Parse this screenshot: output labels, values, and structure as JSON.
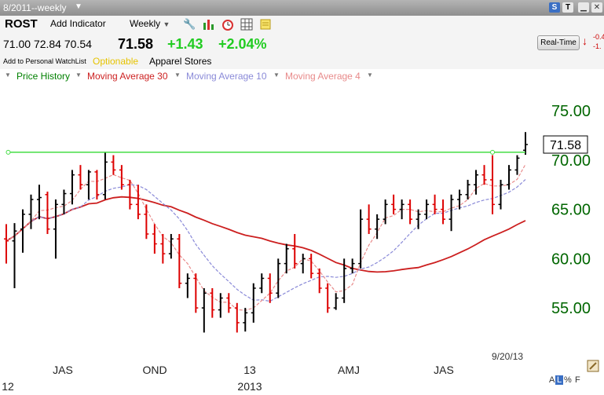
{
  "titlebar": {
    "date_range": "8/2011--weekly",
    "caret_icon": "chevron-down-icon",
    "s_badge": "S",
    "t_badge": "T"
  },
  "toolbar": {
    "symbol": "ROST",
    "add_indicator": "Add Indicator",
    "period": "Weekly",
    "icons": [
      "wrench-icon",
      "bar-chart-icon",
      "alarm-clock-icon",
      "grid-icon",
      "note-icon"
    ]
  },
  "quote": {
    "open": "71.00",
    "high": "72.84",
    "low": "70.54",
    "last": "71.58",
    "change": "+1.43",
    "change_pct": "+2.04%",
    "watchlist": "Add to Personal WatchList",
    "optionable": "Optionable",
    "industry": "Apparel Stores"
  },
  "realtime": {
    "button": "Real-Time",
    "v1": "-0.4",
    "v2": "-1."
  },
  "legend": {
    "items": [
      {
        "label": "Price History",
        "color": "#008000"
      },
      {
        "label": "Moving Average 30",
        "color": "#cc1f1f"
      },
      {
        "label": "Moving Average 10",
        "color": "#8a8ad8"
      },
      {
        "label": "Moving Average 4",
        "color": "#e88a8a"
      }
    ]
  },
  "footer": {
    "date": "9/20/13",
    "a": "A",
    "l": "L",
    "pct": "%",
    "f": "F"
  },
  "colors": {
    "bar_up": "#000000",
    "bar_down": "#dd0000",
    "axis_text": "#006600",
    "trendline": "#44dd44"
  },
  "chart_data": {
    "type": "bar",
    "subtype": "ohlc",
    "ylim": [
      51.5,
      77.8
    ],
    "y_ticks": [
      "75.00",
      "70.00",
      "65.00",
      "60.00",
      "55.00"
    ],
    "y_tick_values": [
      75,
      70,
      65,
      60,
      55
    ],
    "x_labels_top": [
      "JAS",
      "OND",
      "13",
      "AMJ",
      "JAS"
    ],
    "x_labels_bottom": [
      "12",
      "2013"
    ],
    "last_price_label": "71.58",
    "last_price": 71.58,
    "trendline": {
      "start_week": 1,
      "end_week": 59,
      "value": 70.8
    },
    "bars": [
      {
        "o": 62.0,
        "h": 63.5,
        "l": 59.5,
        "c": 61.8
      },
      {
        "o": 61.8,
        "h": 63.6,
        "l": 57.0,
        "c": 62.8
      },
      {
        "o": 63.0,
        "h": 65.0,
        "l": 60.6,
        "c": 64.5
      },
      {
        "o": 64.5,
        "h": 66.5,
        "l": 63.0,
        "c": 66.0
      },
      {
        "o": 66.0,
        "h": 67.5,
        "l": 64.0,
        "c": 66.2
      },
      {
        "o": 66.5,
        "h": 66.8,
        "l": 62.5,
        "c": 63.0
      },
      {
        "o": 63.0,
        "h": 66.0,
        "l": 60.0,
        "c": 65.5
      },
      {
        "o": 65.5,
        "h": 67.0,
        "l": 64.5,
        "c": 66.6
      },
      {
        "o": 66.6,
        "h": 69.0,
        "l": 65.5,
        "c": 68.5
      },
      {
        "o": 68.5,
        "h": 69.5,
        "l": 67.0,
        "c": 67.5
      },
      {
        "o": 67.5,
        "h": 69.0,
        "l": 66.0,
        "c": 68.8
      },
      {
        "o": 68.8,
        "h": 69.0,
        "l": 66.0,
        "c": 66.5
      },
      {
        "o": 66.5,
        "h": 70.8,
        "l": 66.0,
        "c": 69.8
      },
      {
        "o": 69.8,
        "h": 70.5,
        "l": 68.5,
        "c": 69.0
      },
      {
        "o": 69.0,
        "h": 69.5,
        "l": 67.0,
        "c": 67.5
      },
      {
        "o": 67.5,
        "h": 68.0,
        "l": 65.0,
        "c": 65.5
      },
      {
        "o": 65.5,
        "h": 67.5,
        "l": 64.0,
        "c": 64.5
      },
      {
        "o": 64.5,
        "h": 65.5,
        "l": 62.0,
        "c": 62.5
      },
      {
        "o": 62.5,
        "h": 63.5,
        "l": 60.5,
        "c": 61.5
      },
      {
        "o": 61.5,
        "h": 62.5,
        "l": 59.5,
        "c": 60.5
      },
      {
        "o": 60.5,
        "h": 62.5,
        "l": 60.0,
        "c": 62.0
      },
      {
        "o": 62.0,
        "h": 62.5,
        "l": 57.0,
        "c": 57.5
      },
      {
        "o": 57.5,
        "h": 58.5,
        "l": 56.0,
        "c": 58.0
      },
      {
        "o": 58.0,
        "h": 58.5,
        "l": 54.5,
        "c": 55.0
      },
      {
        "o": 55.0,
        "h": 57.0,
        "l": 52.5,
        "c": 56.5
      },
      {
        "o": 56.5,
        "h": 57.0,
        "l": 54.0,
        "c": 54.8
      },
      {
        "o": 54.8,
        "h": 56.5,
        "l": 54.0,
        "c": 56.0
      },
      {
        "o": 56.0,
        "h": 56.5,
        "l": 54.5,
        "c": 55.0
      },
      {
        "o": 55.0,
        "h": 55.5,
        "l": 52.5,
        "c": 53.5
      },
      {
        "o": 53.5,
        "h": 55.0,
        "l": 52.6,
        "c": 54.5
      },
      {
        "o": 54.5,
        "h": 57.5,
        "l": 53.5,
        "c": 57.0
      },
      {
        "o": 57.0,
        "h": 58.5,
        "l": 56.5,
        "c": 58.0
      },
      {
        "o": 58.0,
        "h": 58.5,
        "l": 55.5,
        "c": 56.5
      },
      {
        "o": 56.5,
        "h": 60.0,
        "l": 56.0,
        "c": 59.5
      },
      {
        "o": 59.5,
        "h": 61.5,
        "l": 58.5,
        "c": 61.0
      },
      {
        "o": 61.0,
        "h": 62.5,
        "l": 59.0,
        "c": 59.5
      },
      {
        "o": 59.5,
        "h": 60.5,
        "l": 58.5,
        "c": 60.0
      },
      {
        "o": 60.0,
        "h": 60.5,
        "l": 58.0,
        "c": 58.5
      },
      {
        "o": 58.5,
        "h": 59.0,
        "l": 56.5,
        "c": 57.0
      },
      {
        "o": 57.0,
        "h": 57.5,
        "l": 54.5,
        "c": 55.0
      },
      {
        "o": 55.0,
        "h": 56.5,
        "l": 54.8,
        "c": 56.0
      },
      {
        "o": 56.0,
        "h": 60.0,
        "l": 55.5,
        "c": 59.0
      },
      {
        "o": 59.0,
        "h": 60.0,
        "l": 58.5,
        "c": 59.5
      },
      {
        "o": 59.5,
        "h": 65.0,
        "l": 59.0,
        "c": 64.0
      },
      {
        "o": 64.0,
        "h": 65.5,
        "l": 62.5,
        "c": 63.0
      },
      {
        "o": 63.0,
        "h": 64.5,
        "l": 62.0,
        "c": 64.0
      },
      {
        "o": 64.0,
        "h": 66.0,
        "l": 63.5,
        "c": 65.5
      },
      {
        "o": 65.5,
        "h": 66.5,
        "l": 64.5,
        "c": 65.0
      },
      {
        "o": 65.0,
        "h": 66.0,
        "l": 64.0,
        "c": 65.5
      },
      {
        "o": 65.5,
        "h": 66.0,
        "l": 63.5,
        "c": 64.0
      },
      {
        "o": 64.0,
        "h": 65.0,
        "l": 63.0,
        "c": 64.5
      },
      {
        "o": 64.5,
        "h": 66.0,
        "l": 64.0,
        "c": 65.5
      },
      {
        "o": 65.5,
        "h": 66.5,
        "l": 64.5,
        "c": 65.0
      },
      {
        "o": 65.0,
        "h": 66.0,
        "l": 63.5,
        "c": 64.0
      },
      {
        "o": 64.0,
        "h": 66.5,
        "l": 62.8,
        "c": 66.0
      },
      {
        "o": 66.0,
        "h": 67.0,
        "l": 65.0,
        "c": 66.5
      },
      {
        "o": 66.5,
        "h": 68.0,
        "l": 66.0,
        "c": 67.5
      },
      {
        "o": 67.5,
        "h": 69.0,
        "l": 66.5,
        "c": 68.5
      },
      {
        "o": 68.5,
        "h": 69.5,
        "l": 67.5,
        "c": 68.0
      },
      {
        "o": 68.0,
        "h": 70.5,
        "l": 64.5,
        "c": 65.5
      },
      {
        "o": 65.5,
        "h": 68.0,
        "l": 65.0,
        "c": 67.5
      },
      {
        "o": 67.5,
        "h": 69.5,
        "l": 67.0,
        "c": 69.0
      },
      {
        "o": 69.0,
        "h": 70.5,
        "l": 68.5,
        "c": 70.2
      },
      {
        "o": 71.0,
        "h": 72.84,
        "l": 70.54,
        "c": 71.58
      }
    ]
  }
}
